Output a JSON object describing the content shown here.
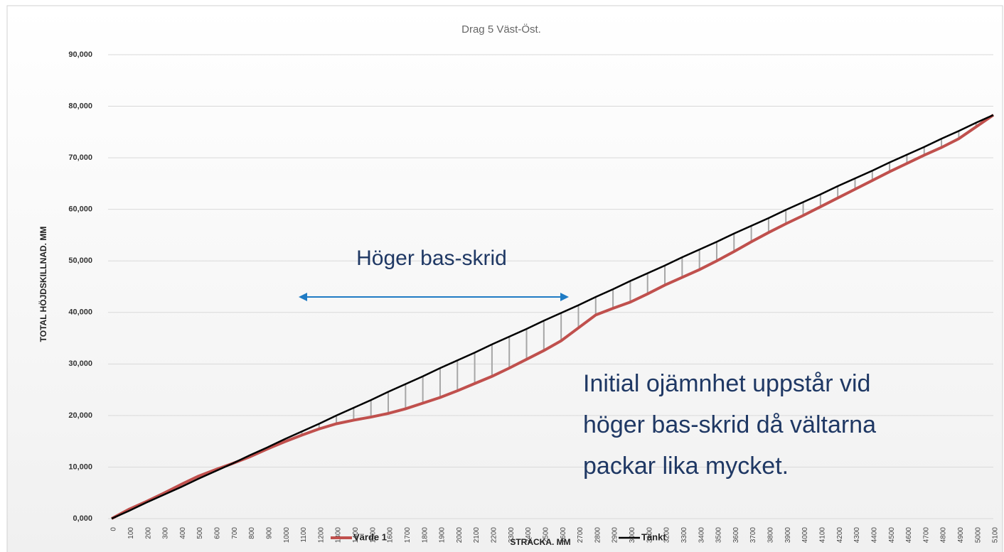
{
  "chart_data": {
    "type": "line",
    "title": "Drag 5 Väst-Öst.",
    "x_label": "STRÄCKA. MM",
    "y_label": "TOTAL HÖJDSKILLNAD. MM",
    "categories": [
      0,
      100,
      200,
      300,
      400,
      500,
      600,
      700,
      800,
      900,
      1000,
      1100,
      1200,
      1300,
      1400,
      1500,
      1600,
      1700,
      1800,
      1900,
      2000,
      2100,
      2200,
      2300,
      2400,
      2500,
      2600,
      2700,
      2800,
      2900,
      3000,
      3100,
      3200,
      3300,
      3400,
      3500,
      3600,
      3700,
      3800,
      3900,
      4000,
      4100,
      4200,
      4300,
      4400,
      4500,
      4600,
      4700,
      4800,
      4900,
      5000,
      5100
    ],
    "series": [
      {
        "name": "Värde 1",
        "color": "#c0504d",
        "values": [
          0,
          1.8,
          3.3,
          4.9,
          6.6,
          8.2,
          9.5,
          10.7,
          12.0,
          13.5,
          14.9,
          16.2,
          17.4,
          18.4,
          19.1,
          19.7,
          20.4,
          21.3,
          22.4,
          23.5,
          24.8,
          26.2,
          27.6,
          29.2,
          30.9,
          32.6,
          34.5,
          37.0,
          39.5,
          40.8,
          42.0,
          43.6,
          45.3,
          46.8,
          48.3,
          50.0,
          51.8,
          53.7,
          55.5,
          57.2,
          58.8,
          60.5,
          62.2,
          63.9,
          65.6,
          67.3,
          68.9,
          70.5,
          72.0,
          73.7,
          76.0,
          78.3
        ]
      },
      {
        "name": "Tänkt",
        "color": "#000000",
        "values": [
          0,
          1.5,
          3.1,
          4.6,
          6.1,
          7.7,
          9.2,
          10.7,
          12.3,
          13.8,
          15.4,
          16.9,
          18.4,
          20.0,
          21.5,
          23.0,
          24.6,
          26.1,
          27.6,
          29.2,
          30.7,
          32.2,
          33.8,
          35.3,
          36.8,
          38.4,
          39.9,
          41.4,
          43.0,
          44.5,
          46.1,
          47.6,
          49.1,
          50.7,
          52.2,
          53.7,
          55.3,
          56.8,
          58.3,
          59.9,
          61.4,
          62.9,
          64.5,
          66.0,
          67.5,
          69.1,
          70.6,
          72.1,
          73.7,
          75.2,
          76.8,
          78.3
        ]
      }
    ],
    "ylim": [
      0,
      90
    ],
    "yticks": [
      {
        "value": 0,
        "label": "0,000"
      },
      {
        "value": 10,
        "label": "10,000"
      },
      {
        "value": 20,
        "label": "20,000"
      },
      {
        "value": 30,
        "label": "30,000"
      },
      {
        "value": 40,
        "label": "40,000"
      },
      {
        "value": 50,
        "label": "50,000"
      },
      {
        "value": 60,
        "label": "60,000"
      },
      {
        "value": 70,
        "label": "70,000"
      },
      {
        "value": 80,
        "label": "80,000"
      },
      {
        "value": 90,
        "label": "90,000"
      }
    ],
    "grid": true,
    "annotations": [
      "Höger bas-skrid",
      [
        "Initial ojämnhet uppstår vid",
        "höger bas-skrid då vältarna",
        "packar lika mycket."
      ]
    ]
  }
}
